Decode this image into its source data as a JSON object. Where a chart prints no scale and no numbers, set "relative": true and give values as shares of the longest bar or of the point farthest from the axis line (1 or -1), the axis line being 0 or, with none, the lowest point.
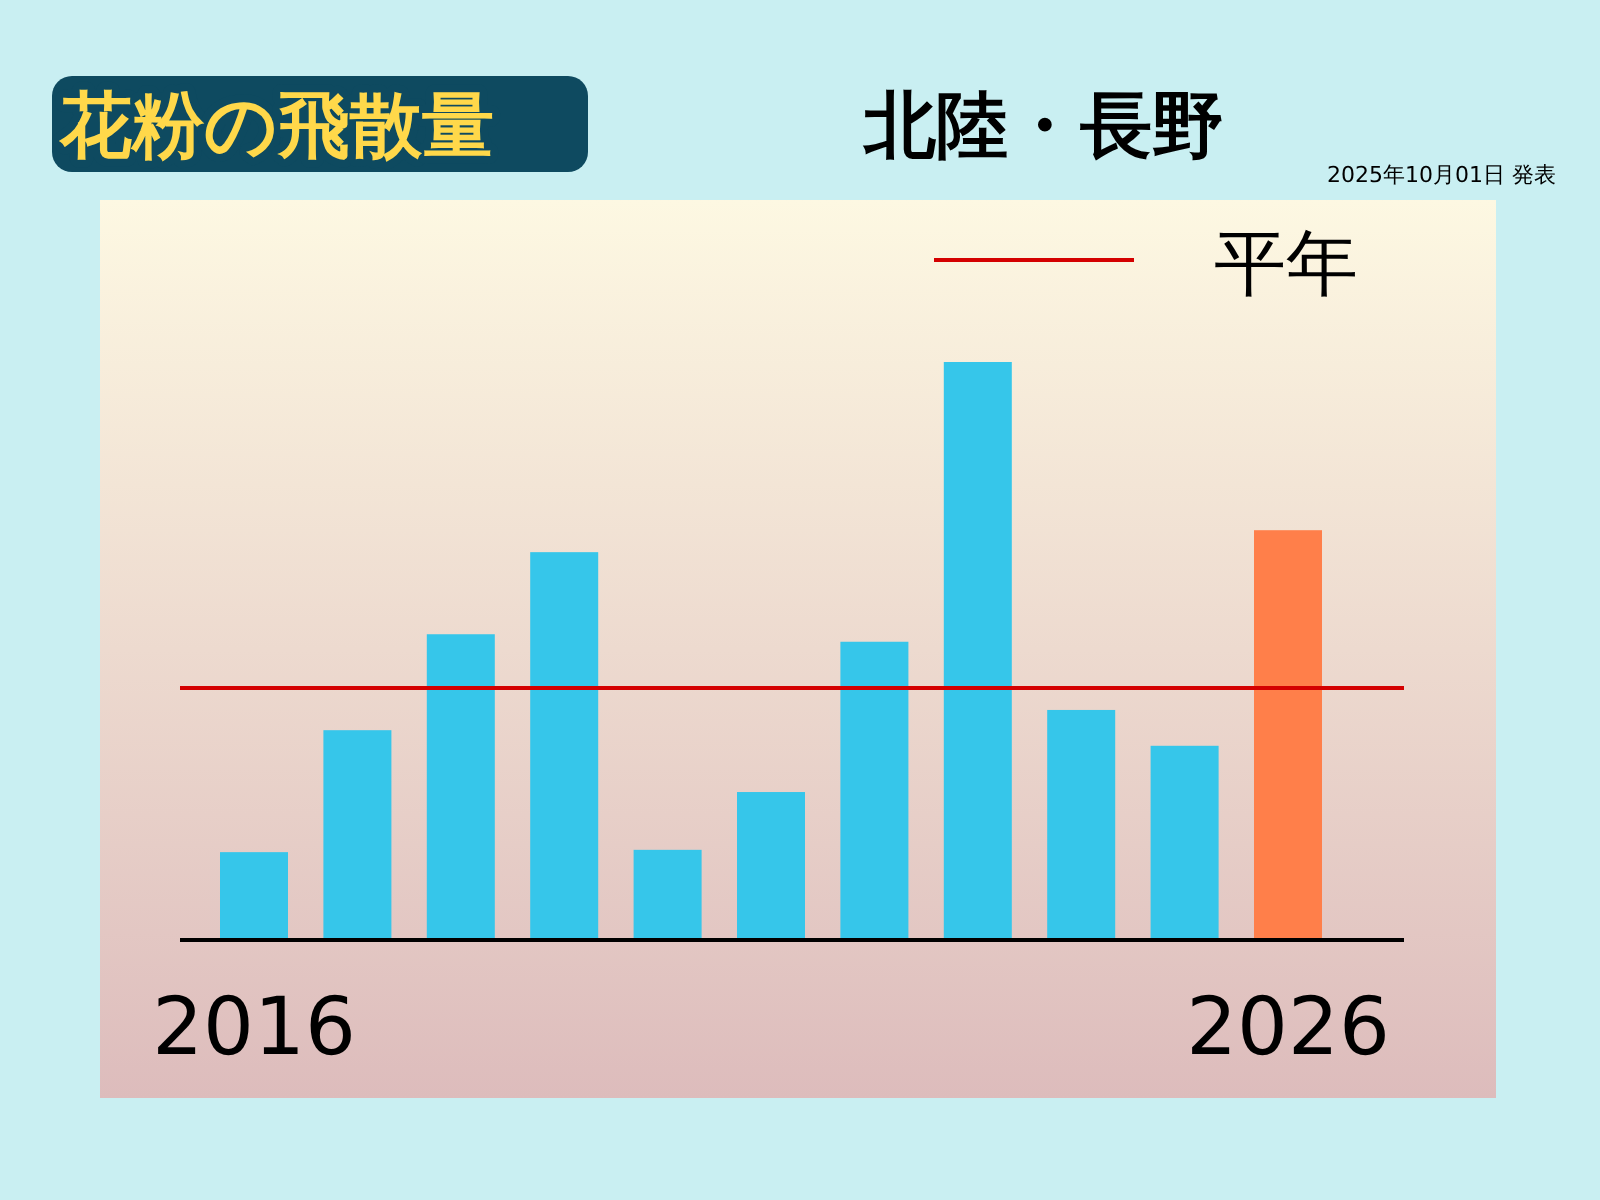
{
  "chart_data": {
    "type": "bar",
    "title": "花粉の飛散量",
    "subtitle": "北陸・長野",
    "annotations": [
      "2025年10月01日 発表"
    ],
    "categories": [
      "2016",
      null,
      null,
      null,
      null,
      null,
      null,
      null,
      null,
      null,
      "2026"
    ],
    "values": [
      0.152,
      0.363,
      0.529,
      0.671,
      0.156,
      0.256,
      0.516,
      1,
      0.398,
      0.336,
      0.709
    ],
    "colors": [
      "#36c6ea",
      "#36c6ea",
      "#36c6ea",
      "#36c6ea",
      "#36c6ea",
      "#36c6ea",
      "#36c6ea",
      "#36c6ea",
      "#36c6ea",
      "#36c6ea",
      "#ff7f4a"
    ],
    "relative": true,
    "ref_lines": [
      {
        "axis": "y",
        "value": 0.436,
        "label": "平年",
        "color": "#d40000"
      }
    ],
    "legend": "top right"
  }
}
